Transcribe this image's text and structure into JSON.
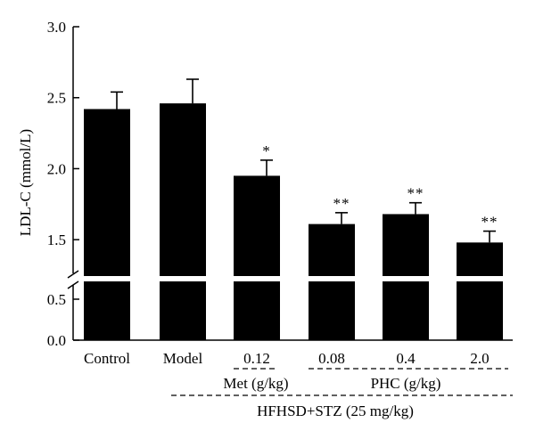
{
  "chart_data": {
    "type": "bar",
    "ylabel": "LDL-C (mmol/L)",
    "categories": [
      "Control",
      "Model",
      "0.12",
      "0.08",
      "0.4",
      "2.0"
    ],
    "values": [
      2.42,
      2.46,
      1.95,
      1.61,
      1.68,
      1.48
    ],
    "errors": [
      0.12,
      0.17,
      0.11,
      0.08,
      0.08,
      0.08
    ],
    "significance": [
      "",
      "",
      "*",
      "**",
      "**",
      "**"
    ],
    "y_axis": {
      "broken": true,
      "lower_segment": {
        "range": [
          0.0,
          0.5
        ],
        "ticks": [
          "0.0",
          "0.5"
        ]
      },
      "upper_segment": {
        "range": [
          1.25,
          3.0
        ],
        "ticks": [
          "1.5",
          "2.0",
          "2.5",
          "3.0"
        ]
      }
    },
    "groups": [
      {
        "label": "Met (g/kg)",
        "categories": [
          "0.12"
        ]
      },
      {
        "label": "PHC (g/kg)",
        "categories": [
          "0.08",
          "0.4",
          "2.0"
        ]
      },
      {
        "label": "HFHSD+STZ (25 mg/kg)",
        "categories": [
          "0.12",
          "0.08",
          "0.4",
          "2.0"
        ]
      }
    ],
    "bar_color": "#000000",
    "grid": false
  }
}
